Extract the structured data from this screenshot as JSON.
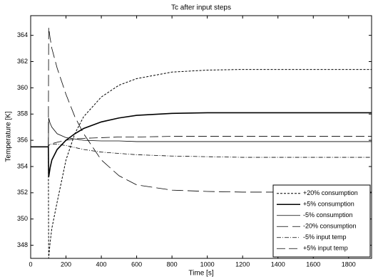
{
  "chart_data": {
    "type": "line",
    "title": "Tc after input steps",
    "x_label": "Time [s]",
    "y_label": "Temperature [K]",
    "xlim": [
      0,
      1930
    ],
    "ylim": [
      347,
      365.5
    ],
    "xticks": [
      0,
      200,
      400,
      600,
      800,
      1000,
      1200,
      1400,
      1600,
      1800
    ],
    "yticks": [
      348,
      350,
      352,
      354,
      356,
      358,
      360,
      362,
      364
    ],
    "grid": false,
    "legend": "lower right",
    "x": [
      0,
      100,
      102,
      110,
      120,
      150,
      200,
      250,
      300,
      400,
      500,
      600,
      800,
      1000,
      1200,
      1400,
      1600,
      1800,
      1930
    ],
    "series": [
      {
        "name": "+20% consumption",
        "color": "#000000",
        "dash": "3,2",
        "width": 1,
        "values": [
          355.5,
          355.5,
          347,
          348.2,
          349.3,
          351.3,
          354.5,
          356.5,
          357.8,
          359.3,
          360.2,
          360.7,
          361.2,
          361.35,
          361.4,
          361.4,
          361.4,
          361.4,
          361.4
        ]
      },
      {
        "name": "+5% consumption",
        "color": "#000000",
        "dash": "none",
        "width": 1.6,
        "values": [
          355.5,
          355.5,
          353.2,
          353.9,
          354.5,
          355.3,
          356.0,
          356.5,
          356.9,
          357.4,
          357.7,
          357.9,
          358.05,
          358.1,
          358.1,
          358.1,
          358.1,
          358.1,
          358.1
        ]
      },
      {
        "name": "-5% consumption",
        "color": "#000000",
        "dash": "none",
        "width": 0.8,
        "values": [
          355.5,
          355.5,
          357.7,
          357.3,
          357.0,
          356.5,
          356.2,
          356.1,
          356.0,
          355.95,
          355.95,
          355.9,
          355.9,
          355.9,
          355.9,
          355.9,
          355.9,
          355.9,
          355.9
        ]
      },
      {
        "name": "-20% consumption",
        "color": "#000000",
        "dash": "16,6",
        "width": 0.8,
        "values": [
          355.5,
          355.5,
          364.6,
          363.8,
          363.0,
          361.5,
          359.5,
          357.8,
          356.5,
          354.5,
          353.3,
          352.6,
          352.2,
          352.1,
          352.05,
          352.05,
          352.05,
          352.05,
          352.05
        ]
      },
      {
        "name": "-5% input temp",
        "color": "#000000",
        "dash": "6,2,1,2",
        "width": 0.8,
        "values": [
          355.5,
          355.5,
          355.6,
          355.7,
          355.7,
          355.7,
          355.6,
          355.45,
          355.3,
          355.1,
          355.0,
          354.9,
          354.8,
          354.75,
          354.7,
          354.7,
          354.7,
          354.7,
          354.7
        ]
      },
      {
        "name": "+5% input temp",
        "color": "#000000",
        "dash": "12,5",
        "width": 0.8,
        "values": [
          355.5,
          355.5,
          355.6,
          355.7,
          355.75,
          355.85,
          356.0,
          356.1,
          356.15,
          356.2,
          356.25,
          356.25,
          356.3,
          356.3,
          356.3,
          356.3,
          356.3,
          356.3,
          356.3
        ]
      }
    ]
  }
}
